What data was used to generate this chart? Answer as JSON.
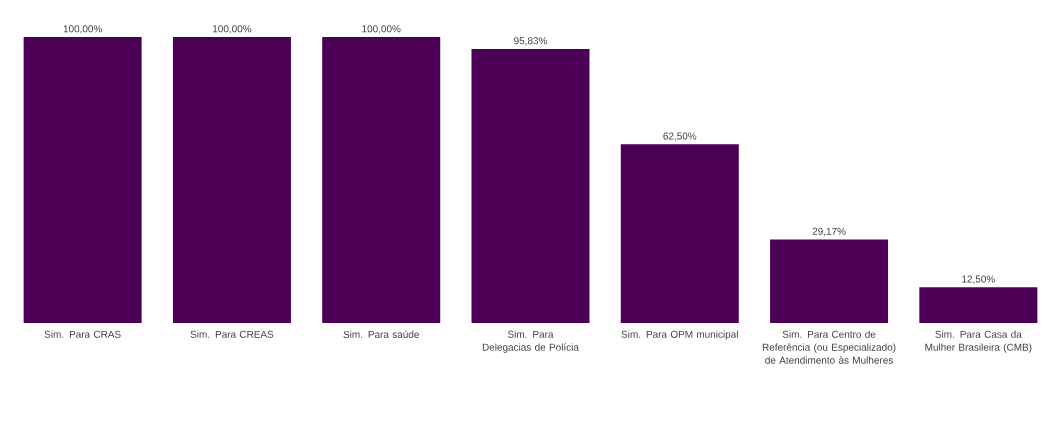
{
  "chart_data": {
    "type": "bar",
    "categories": [
      "Sim. Para CRAS",
      "Sim. Para CREAS",
      "Sim. Para saúde",
      "Sim. Para Delegacias de Polícia",
      "Sim. Para OPM municipal",
      "Sim. Para Centro de Referência (ou Especializado) de Atendimento às Mulheres",
      "Sim. Para Casa da Mulher Brasileira (CMB)"
    ],
    "values": [
      100,
      100,
      100,
      95.83,
      62.5,
      29.17,
      12.5
    ],
    "value_labels": [
      "100,00%",
      "100,00%",
      "100,00%",
      "95,83%",
      "62,50%",
      "29,17%",
      "12,50%"
    ],
    "color": "#4b0055"
  }
}
